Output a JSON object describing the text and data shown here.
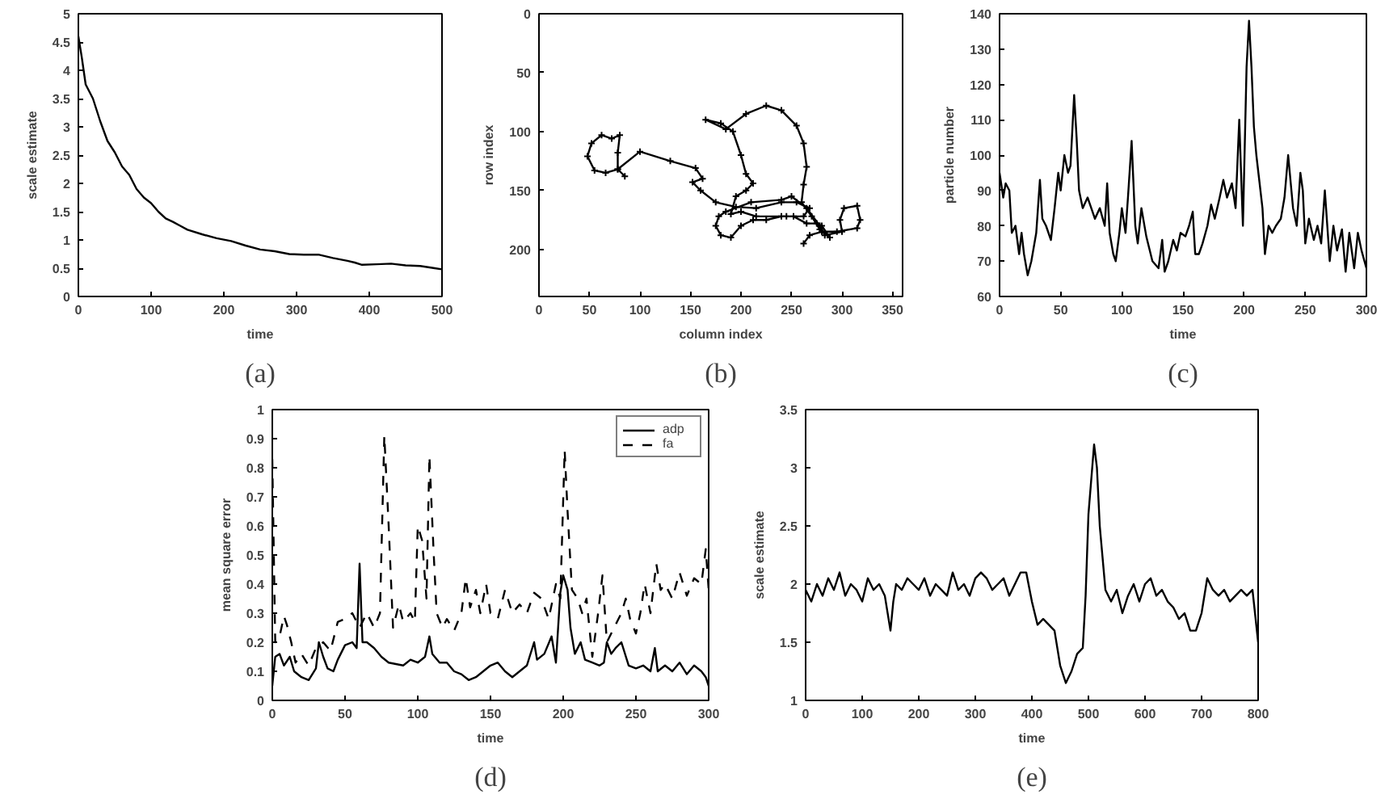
{
  "chart_data": [
    {
      "type": "line",
      "xlabel": "time",
      "ylabel": "scale estimate",
      "annotations": [
        "(a)"
      ],
      "xlim": [
        0,
        500
      ],
      "ylim": [
        0,
        5
      ],
      "xticks": [
        0,
        100,
        200,
        300,
        400,
        500
      ],
      "yticks": [
        0,
        0.5,
        1,
        1.5,
        2,
        2.5,
        3,
        3.5,
        4,
        4.5,
        5
      ],
      "x": [
        0,
        5,
        10,
        20,
        30,
        40,
        50,
        60,
        70,
        80,
        90,
        100,
        110,
        120,
        130,
        140,
        150,
        170,
        190,
        210,
        230,
        250,
        270,
        290,
        310,
        330,
        350,
        370,
        380,
        390,
        410,
        430,
        450,
        470,
        490,
        500
      ],
      "series": [
        {
          "color": "#000000",
          "values": [
            4.6,
            4.2,
            3.75,
            3.5,
            3.1,
            2.75,
            2.55,
            2.3,
            2.15,
            1.9,
            1.75,
            1.65,
            1.5,
            1.38,
            1.32,
            1.25,
            1.18,
            1.1,
            1.03,
            0.98,
            0.9,
            0.83,
            0.8,
            0.75,
            0.74,
            0.74,
            0.68,
            0.63,
            0.6,
            0.56,
            0.57,
            0.58,
            0.55,
            0.54,
            0.5,
            0.48
          ]
        }
      ]
    },
    {
      "type": "line",
      "xlabel": "column index",
      "ylabel": "row index",
      "annotations": [
        "(b)"
      ],
      "xlim": [
        0,
        360
      ],
      "ylim": [
        240,
        0
      ],
      "xticks": [
        0,
        50,
        100,
        150,
        200,
        250,
        300,
        350
      ],
      "yticks": [
        0,
        50,
        100,
        150,
        200
      ],
      "series": [
        {
          "color": "#000000",
          "marker": "cross",
          "x": [
            85,
            78,
            66,
            55,
            48,
            52,
            62,
            72,
            80,
            78,
            78,
            100,
            130,
            155,
            162,
            152,
            160,
            175,
            195,
            215,
            240,
            255,
            268,
            262,
            245,
            215,
            200,
            190,
            195,
            205,
            212,
            205,
            200,
            192,
            180,
            165,
            185,
            205,
            225,
            240,
            255,
            262,
            265,
            262,
            260,
            270,
            278,
            288,
            280,
            275,
            265,
            252,
            240,
            225,
            212,
            200,
            190,
            180,
            175,
            178,
            185,
            210,
            240,
            250,
            265,
            278,
            283,
            300,
            298,
            302,
            315,
            318,
            315,
            295,
            280,
            268,
            262
          ],
          "values": [
            138,
            132,
            135,
            133,
            121,
            110,
            103,
            106,
            103,
            118,
            132,
            117,
            125,
            131,
            140,
            143,
            150,
            160,
            164,
            165,
            160,
            160,
            165,
            172,
            172,
            172,
            168,
            170,
            155,
            150,
            144,
            136,
            120,
            100,
            93,
            90,
            98,
            85,
            78,
            82,
            95,
            110,
            130,
            145,
            160,
            172,
            183,
            190,
            180,
            178,
            178,
            172,
            172,
            175,
            175,
            180,
            190,
            188,
            180,
            172,
            168,
            160,
            158,
            155,
            165,
            180,
            188,
            185,
            175,
            165,
            163,
            175,
            182,
            185,
            185,
            188,
            195
          ]
        }
      ]
    },
    {
      "type": "line",
      "xlabel": "time",
      "ylabel": "particle number",
      "annotations": [
        "(c)"
      ],
      "xlim": [
        0,
        300
      ],
      "ylim": [
        60,
        140
      ],
      "xticks": [
        0,
        50,
        100,
        150,
        200,
        250,
        300
      ],
      "yticks": [
        60,
        70,
        80,
        90,
        100,
        110,
        120,
        130,
        140
      ],
      "x": [
        0,
        3,
        5,
        8,
        10,
        13,
        16,
        18,
        20,
        23,
        26,
        30,
        33,
        35,
        38,
        42,
        45,
        48,
        50,
        53,
        56,
        58,
        61,
        63,
        65,
        68,
        72,
        75,
        78,
        82,
        86,
        88,
        90,
        93,
        95,
        98,
        100,
        103,
        105,
        108,
        111,
        113,
        116,
        120,
        125,
        130,
        133,
        135,
        138,
        142,
        145,
        148,
        152,
        155,
        158,
        160,
        163,
        166,
        170,
        173,
        176,
        180,
        183,
        186,
        190,
        193,
        196,
        199,
        202,
        204,
        206,
        208,
        210,
        212,
        215,
        217,
        220,
        223,
        226,
        230,
        233,
        236,
        240,
        243,
        246,
        248,
        250,
        253,
        257,
        260,
        263,
        266,
        270,
        273,
        276,
        280,
        283,
        286,
        290,
        293,
        296,
        300
      ],
      "series": [
        {
          "color": "#000000",
          "values": [
            95,
            88,
            92,
            90,
            78,
            80,
            72,
            78,
            72,
            66,
            70,
            78,
            93,
            82,
            80,
            76,
            85,
            95,
            90,
            100,
            95,
            97,
            117,
            105,
            90,
            85,
            88,
            85,
            82,
            85,
            80,
            92,
            78,
            72,
            70,
            78,
            85,
            78,
            88,
            104,
            80,
            75,
            85,
            77,
            70,
            68,
            76,
            67,
            70,
            76,
            73,
            78,
            77,
            80,
            84,
            72,
            72,
            75,
            80,
            86,
            82,
            88,
            93,
            88,
            92,
            85,
            110,
            80,
            125,
            138,
            125,
            108,
            100,
            94,
            85,
            72,
            80,
            78,
            80,
            82,
            88,
            100,
            85,
            80,
            95,
            90,
            75,
            82,
            76,
            80,
            75,
            90,
            70,
            80,
            73,
            79,
            67,
            78,
            68,
            78,
            73,
            68
          ]
        }
      ]
    },
    {
      "type": "line",
      "xlabel": "time",
      "ylabel": "mean square error",
      "annotations": [
        "(d)"
      ],
      "legend": "top right",
      "xlim": [
        0,
        300
      ],
      "ylim": [
        0,
        1
      ],
      "xticks": [
        0,
        50,
        100,
        150,
        200,
        250,
        300
      ],
      "yticks": [
        0,
        0.1,
        0.2,
        0.3,
        0.4,
        0.5,
        0.6,
        0.7,
        0.8,
        0.9,
        1
      ],
      "series": [
        {
          "name": "adp",
          "color": "#000000",
          "line_style": "solid",
          "x": [
            0,
            2,
            5,
            8,
            12,
            15,
            20,
            25,
            30,
            32,
            35,
            38,
            42,
            45,
            50,
            55,
            58,
            60,
            62,
            65,
            70,
            75,
            80,
            90,
            95,
            100,
            105,
            108,
            110,
            115,
            120,
            125,
            130,
            135,
            140,
            145,
            150,
            155,
            160,
            165,
            170,
            175,
            180,
            182,
            187,
            192,
            195,
            198,
            200,
            203,
            205,
            208,
            212,
            215,
            220,
            225,
            228,
            230,
            233,
            236,
            240,
            245,
            250,
            255,
            260,
            263,
            265,
            270,
            275,
            280,
            285,
            290,
            295,
            298,
            300
          ],
          "values": [
            0.05,
            0.15,
            0.16,
            0.12,
            0.15,
            0.1,
            0.08,
            0.07,
            0.11,
            0.2,
            0.15,
            0.11,
            0.1,
            0.14,
            0.19,
            0.2,
            0.18,
            0.47,
            0.2,
            0.2,
            0.18,
            0.15,
            0.13,
            0.12,
            0.14,
            0.13,
            0.15,
            0.22,
            0.16,
            0.13,
            0.13,
            0.1,
            0.09,
            0.07,
            0.08,
            0.1,
            0.12,
            0.13,
            0.1,
            0.08,
            0.1,
            0.12,
            0.2,
            0.14,
            0.16,
            0.22,
            0.13,
            0.37,
            0.43,
            0.38,
            0.25,
            0.16,
            0.2,
            0.14,
            0.13,
            0.12,
            0.13,
            0.2,
            0.16,
            0.18,
            0.2,
            0.12,
            0.11,
            0.12,
            0.1,
            0.18,
            0.1,
            0.12,
            0.1,
            0.13,
            0.09,
            0.12,
            0.1,
            0.08,
            0.05
          ]
        },
        {
          "name": "fa",
          "color": "#000000",
          "line_style": "dashed",
          "x": [
            0,
            2,
            5,
            8,
            10,
            13,
            16,
            20,
            25,
            30,
            35,
            40,
            45,
            50,
            55,
            60,
            65,
            70,
            74,
            77,
            80,
            83,
            87,
            90,
            95,
            98,
            100,
            103,
            106,
            108,
            111,
            113,
            117,
            120,
            125,
            130,
            133,
            136,
            140,
            143,
            147,
            150,
            155,
            160,
            165,
            170,
            175,
            180,
            185,
            190,
            195,
            198,
            201,
            203,
            206,
            210,
            213,
            216,
            220,
            224,
            227,
            230,
            235,
            240,
            243,
            246,
            250,
            253,
            256,
            260,
            264,
            267,
            270,
            275,
            280,
            285,
            290,
            295,
            298,
            300
          ],
          "values": [
            0.83,
            0.2,
            0.22,
            0.29,
            0.26,
            0.2,
            0.13,
            0.16,
            0.12,
            0.18,
            0.2,
            0.17,
            0.27,
            0.28,
            0.3,
            0.25,
            0.3,
            0.25,
            0.3,
            0.91,
            0.6,
            0.25,
            0.33,
            0.27,
            0.3,
            0.27,
            0.6,
            0.55,
            0.35,
            0.84,
            0.5,
            0.3,
            0.25,
            0.28,
            0.24,
            0.3,
            0.42,
            0.32,
            0.38,
            0.3,
            0.4,
            0.3,
            0.28,
            0.38,
            0.3,
            0.33,
            0.3,
            0.37,
            0.35,
            0.28,
            0.4,
            0.35,
            0.86,
            0.65,
            0.38,
            0.35,
            0.3,
            0.35,
            0.15,
            0.3,
            0.43,
            0.2,
            0.25,
            0.3,
            0.35,
            0.28,
            0.23,
            0.3,
            0.4,
            0.3,
            0.47,
            0.38,
            0.4,
            0.35,
            0.44,
            0.36,
            0.42,
            0.4,
            0.52,
            0.38
          ]
        }
      ]
    },
    {
      "type": "line",
      "xlabel": "time",
      "ylabel": "scale estimate",
      "annotations": [
        "(e)"
      ],
      "xlim": [
        0,
        800
      ],
      "ylim": [
        1,
        3.5
      ],
      "xticks": [
        0,
        100,
        200,
        300,
        400,
        500,
        600,
        700,
        800
      ],
      "yticks": [
        1,
        1.5,
        2,
        2.5,
        3,
        3.5
      ],
      "x": [
        0,
        10,
        20,
        30,
        40,
        50,
        60,
        70,
        80,
        90,
        100,
        110,
        120,
        130,
        140,
        150,
        155,
        160,
        170,
        180,
        190,
        200,
        210,
        220,
        230,
        240,
        250,
        260,
        270,
        280,
        290,
        300,
        310,
        320,
        330,
        340,
        350,
        360,
        370,
        380,
        390,
        400,
        410,
        420,
        430,
        440,
        450,
        460,
        470,
        480,
        490,
        495,
        500,
        510,
        515,
        520,
        530,
        540,
        550,
        560,
        570,
        580,
        590,
        600,
        610,
        620,
        630,
        640,
        650,
        660,
        670,
        680,
        690,
        700,
        710,
        720,
        730,
        740,
        750,
        760,
        770,
        780,
        790,
        800
      ],
      "series": [
        {
          "color": "#000000",
          "values": [
            1.95,
            1.85,
            2.0,
            1.9,
            2.05,
            1.95,
            2.1,
            1.9,
            2.0,
            1.95,
            1.85,
            2.05,
            1.95,
            2.0,
            1.9,
            1.6,
            1.85,
            2.0,
            1.95,
            2.05,
            2.0,
            1.95,
            2.05,
            1.9,
            2.0,
            1.95,
            1.9,
            2.1,
            1.95,
            2.0,
            1.9,
            2.05,
            2.1,
            2.05,
            1.95,
            2.0,
            2.05,
            1.9,
            2.0,
            2.1,
            2.1,
            1.85,
            1.65,
            1.7,
            1.65,
            1.6,
            1.3,
            1.15,
            1.25,
            1.4,
            1.45,
            1.9,
            2.6,
            3.2,
            3.0,
            2.5,
            1.95,
            1.85,
            1.95,
            1.75,
            1.9,
            2.0,
            1.85,
            2.0,
            2.05,
            1.9,
            1.95,
            1.85,
            1.8,
            1.7,
            1.75,
            1.6,
            1.6,
            1.75,
            2.05,
            1.95,
            1.9,
            1.95,
            1.85,
            1.9,
            1.95,
            1.9,
            1.95,
            1.5
          ]
        }
      ]
    }
  ]
}
